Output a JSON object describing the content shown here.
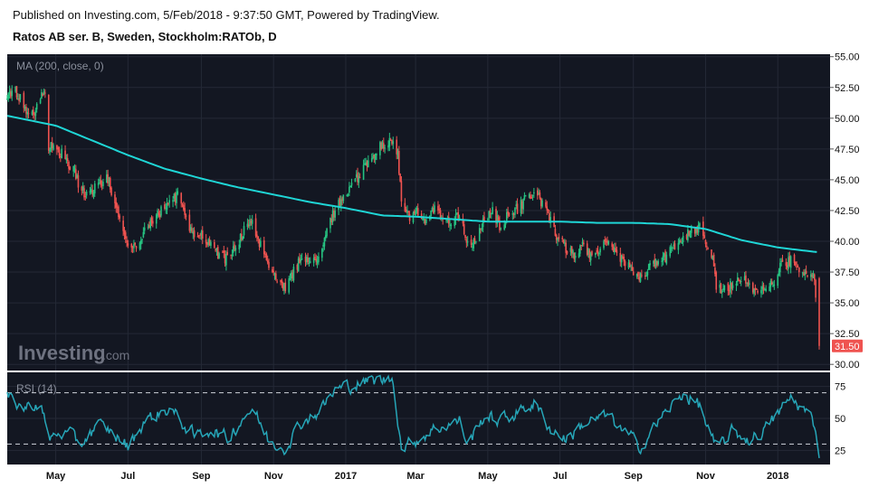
{
  "header": {
    "published": "Published on Investing.com, 5/Feb/2018 - 9:37:50 GMT, Powered by TradingView.",
    "instrument": "Ratos AB ser. B, Sweden, Stockholm:RATOb, D"
  },
  "logo": {
    "brand": "Investing",
    "suffix": ".com"
  },
  "colors": {
    "background": "#131722",
    "up": "#26c281",
    "down": "#ef5350",
    "ma": "#1fd6d6",
    "rsi": "#26a6b8",
    "last_price_bg": "#ef5350",
    "grid": "#242936"
  },
  "chart_data": [
    {
      "type": "candlestick",
      "title": "Ratos AB ser. B, Sweden, Stockholm:RATOb, D",
      "indicator_label": "MA (200, close, 0)",
      "x_tick_labels": [
        "May",
        "Jul",
        "Sep",
        "Nov",
        "2017",
        "Mar",
        "May",
        "Jul",
        "Sep",
        "Nov",
        "2018"
      ],
      "x_tick_dates": [
        "2016-05-01",
        "2016-07-01",
        "2016-09-01",
        "2016-11-01",
        "2017-01-01",
        "2017-03-01",
        "2017-05-01",
        "2017-07-01",
        "2017-09-01",
        "2017-11-01",
        "2018-01-01"
      ],
      "x_range": [
        "2016-03-21",
        "2018-02-05"
      ],
      "y_ticks": [
        "55.00",
        "52.50",
        "50.00",
        "47.50",
        "45.00",
        "42.50",
        "40.00",
        "37.50",
        "35.00",
        "32.50",
        "30.00"
      ],
      "ylim": [
        29.5,
        55.2
      ],
      "last_price": "31.50",
      "last_price_value": 31.5,
      "close_path": [
        [
          "2016-03-21",
          51.6
        ],
        [
          "2016-03-28",
          52.3
        ],
        [
          "2016-04-04",
          51.0
        ],
        [
          "2016-04-11",
          50.2
        ],
        [
          "2016-04-18",
          51.9
        ],
        [
          "2016-04-22",
          52.0
        ],
        [
          "2016-04-25",
          47.5
        ],
        [
          "2016-05-01",
          47.8
        ],
        [
          "2016-05-08",
          46.8
        ],
        [
          "2016-05-15",
          46.0
        ],
        [
          "2016-05-22",
          44.2
        ],
        [
          "2016-05-29",
          43.6
        ],
        [
          "2016-06-05",
          44.5
        ],
        [
          "2016-06-12",
          45.2
        ],
        [
          "2016-06-19",
          43.8
        ],
        [
          "2016-06-24",
          41.5
        ],
        [
          "2016-07-01",
          40.0
        ],
        [
          "2016-07-08",
          39.6
        ],
        [
          "2016-07-15",
          40.8
        ],
        [
          "2016-07-22",
          41.8
        ],
        [
          "2016-07-29",
          42.4
        ],
        [
          "2016-08-05",
          43.1
        ],
        [
          "2016-08-12",
          43.7
        ],
        [
          "2016-08-19",
          42.1
        ],
        [
          "2016-08-26",
          40.2
        ],
        [
          "2016-09-02",
          40.6
        ],
        [
          "2016-09-09",
          39.7
        ],
        [
          "2016-09-16",
          38.8
        ],
        [
          "2016-09-23",
          38.6
        ],
        [
          "2016-09-30",
          39.7
        ],
        [
          "2016-10-07",
          40.8
        ],
        [
          "2016-10-14",
          41.6
        ],
        [
          "2016-10-21",
          39.6
        ],
        [
          "2016-10-28",
          37.8
        ],
        [
          "2016-11-04",
          37.1
        ],
        [
          "2016-11-11",
          36.4
        ],
        [
          "2016-11-18",
          37.6
        ],
        [
          "2016-11-25",
          38.6
        ],
        [
          "2016-12-02",
          38.2
        ],
        [
          "2016-12-09",
          38.9
        ],
        [
          "2016-12-16",
          41.0
        ],
        [
          "2016-12-23",
          42.6
        ],
        [
          "2016-12-30",
          43.4
        ],
        [
          "2017-01-06",
          44.6
        ],
        [
          "2017-01-13",
          45.4
        ],
        [
          "2017-01-20",
          46.6
        ],
        [
          "2017-01-27",
          47.4
        ],
        [
          "2017-02-03",
          47.9
        ],
        [
          "2017-02-10",
          48.3
        ],
        [
          "2017-02-14",
          47.0
        ],
        [
          "2017-02-17",
          43.2
        ],
        [
          "2017-02-24",
          41.8
        ],
        [
          "2017-03-03",
          42.4
        ],
        [
          "2017-03-10",
          41.8
        ],
        [
          "2017-03-17",
          42.5
        ],
        [
          "2017-03-24",
          42.0
        ],
        [
          "2017-03-31",
          41.6
        ],
        [
          "2017-04-07",
          42.2
        ],
        [
          "2017-04-14",
          39.6
        ],
        [
          "2017-04-21",
          39.9
        ],
        [
          "2017-04-28",
          41.8
        ],
        [
          "2017-05-05",
          42.6
        ],
        [
          "2017-05-12",
          41.0
        ],
        [
          "2017-05-19",
          42.3
        ],
        [
          "2017-05-26",
          42.6
        ],
        [
          "2017-06-02",
          43.4
        ],
        [
          "2017-06-09",
          43.9
        ],
        [
          "2017-06-16",
          43.2
        ],
        [
          "2017-06-23",
          41.6
        ],
        [
          "2017-06-30",
          40.1
        ],
        [
          "2017-07-07",
          39.3
        ],
        [
          "2017-07-14",
          38.9
        ],
        [
          "2017-07-21",
          39.6
        ],
        [
          "2017-07-28",
          38.6
        ],
        [
          "2017-08-04",
          39.6
        ],
        [
          "2017-08-11",
          39.8
        ],
        [
          "2017-08-18",
          38.9
        ],
        [
          "2017-08-25",
          38.1
        ],
        [
          "2017-09-01",
          37.6
        ],
        [
          "2017-09-08",
          36.9
        ],
        [
          "2017-09-15",
          37.9
        ],
        [
          "2017-09-22",
          38.5
        ],
        [
          "2017-09-29",
          38.8
        ],
        [
          "2017-10-06",
          39.7
        ],
        [
          "2017-10-13",
          40.1
        ],
        [
          "2017-10-20",
          40.9
        ],
        [
          "2017-10-27",
          41.1
        ],
        [
          "2017-11-03",
          39.6
        ],
        [
          "2017-11-08",
          38.1
        ],
        [
          "2017-11-10",
          35.9
        ],
        [
          "2017-11-17",
          36.2
        ],
        [
          "2017-11-24",
          36.6
        ],
        [
          "2017-12-01",
          37.1
        ],
        [
          "2017-12-08",
          36.3
        ],
        [
          "2017-12-15",
          35.7
        ],
        [
          "2017-12-22",
          36.1
        ],
        [
          "2017-12-29",
          36.9
        ],
        [
          "2018-01-05",
          38.2
        ],
        [
          "2018-01-12",
          38.4
        ],
        [
          "2018-01-19",
          37.9
        ],
        [
          "2018-01-26",
          37.4
        ],
        [
          "2018-02-01",
          37.2
        ],
        [
          "2018-02-05",
          31.5
        ]
      ],
      "ma_200": [
        [
          "2016-03-21",
          50.2
        ],
        [
          "2016-05-01",
          49.4
        ],
        [
          "2016-07-01",
          47.0
        ],
        [
          "2016-08-01",
          45.9
        ],
        [
          "2016-09-01",
          45.1
        ],
        [
          "2016-10-01",
          44.4
        ],
        [
          "2016-11-01",
          43.8
        ],
        [
          "2016-12-01",
          43.2
        ],
        [
          "2017-01-01",
          42.7
        ],
        [
          "2017-02-01",
          42.1
        ],
        [
          "2017-03-01",
          42.0
        ],
        [
          "2017-05-01",
          41.6
        ],
        [
          "2017-07-01",
          41.6
        ],
        [
          "2017-08-01",
          41.5
        ],
        [
          "2017-09-01",
          41.5
        ],
        [
          "2017-10-01",
          41.4
        ],
        [
          "2017-11-01",
          41.0
        ],
        [
          "2017-12-01",
          40.1
        ],
        [
          "2018-01-01",
          39.5
        ],
        [
          "2018-02-05",
          39.1
        ]
      ]
    },
    {
      "type": "line",
      "indicator_label": "RSI (14)",
      "y_ticks": [
        "75",
        "50",
        "25"
      ],
      "ylim": [
        14,
        86
      ],
      "reference_lines": [
        30,
        70
      ],
      "x_range": [
        "2016-03-21",
        "2018-02-05"
      ],
      "rsi_path": [
        [
          "2016-03-21",
          66
        ],
        [
          "2016-04-04",
          58
        ],
        [
          "2016-04-18",
          62
        ],
        [
          "2016-04-25",
          34
        ],
        [
          "2016-05-08",
          40
        ],
        [
          "2016-05-22",
          30
        ],
        [
          "2016-06-05",
          45
        ],
        [
          "2016-06-19",
          38
        ],
        [
          "2016-07-01",
          28
        ],
        [
          "2016-07-15",
          48
        ],
        [
          "2016-08-05",
          58
        ],
        [
          "2016-08-26",
          36
        ],
        [
          "2016-09-09",
          42
        ],
        [
          "2016-09-23",
          34
        ],
        [
          "2016-10-07",
          52
        ],
        [
          "2016-10-14",
          58
        ],
        [
          "2016-10-28",
          32
        ],
        [
          "2016-11-11",
          28
        ],
        [
          "2016-11-25",
          48
        ],
        [
          "2016-12-09",
          55
        ],
        [
          "2016-12-23",
          72
        ],
        [
          "2017-01-06",
          76
        ],
        [
          "2017-01-20",
          79
        ],
        [
          "2017-02-03",
          80
        ],
        [
          "2017-02-10",
          81
        ],
        [
          "2017-02-17",
          27
        ],
        [
          "2017-03-03",
          34
        ],
        [
          "2017-03-17",
          42
        ],
        [
          "2017-04-07",
          48
        ],
        [
          "2017-04-14",
          30
        ],
        [
          "2017-04-28",
          52
        ],
        [
          "2017-05-12",
          48
        ],
        [
          "2017-05-26",
          55
        ],
        [
          "2017-06-09",
          62
        ],
        [
          "2017-06-23",
          42
        ],
        [
          "2017-07-07",
          34
        ],
        [
          "2017-07-21",
          46
        ],
        [
          "2017-08-11",
          52
        ],
        [
          "2017-08-25",
          38
        ],
        [
          "2017-09-08",
          28
        ],
        [
          "2017-09-22",
          48
        ],
        [
          "2017-10-06",
          62
        ],
        [
          "2017-10-13",
          70
        ],
        [
          "2017-10-27",
          60
        ],
        [
          "2017-11-03",
          42
        ],
        [
          "2017-11-10",
          26
        ],
        [
          "2017-11-24",
          40
        ],
        [
          "2017-12-08",
          33
        ],
        [
          "2017-12-22",
          42
        ],
        [
          "2018-01-05",
          58
        ],
        [
          "2018-01-12",
          66
        ],
        [
          "2018-01-26",
          54
        ],
        [
          "2018-02-01",
          46
        ],
        [
          "2018-02-05",
          19
        ]
      ]
    }
  ]
}
